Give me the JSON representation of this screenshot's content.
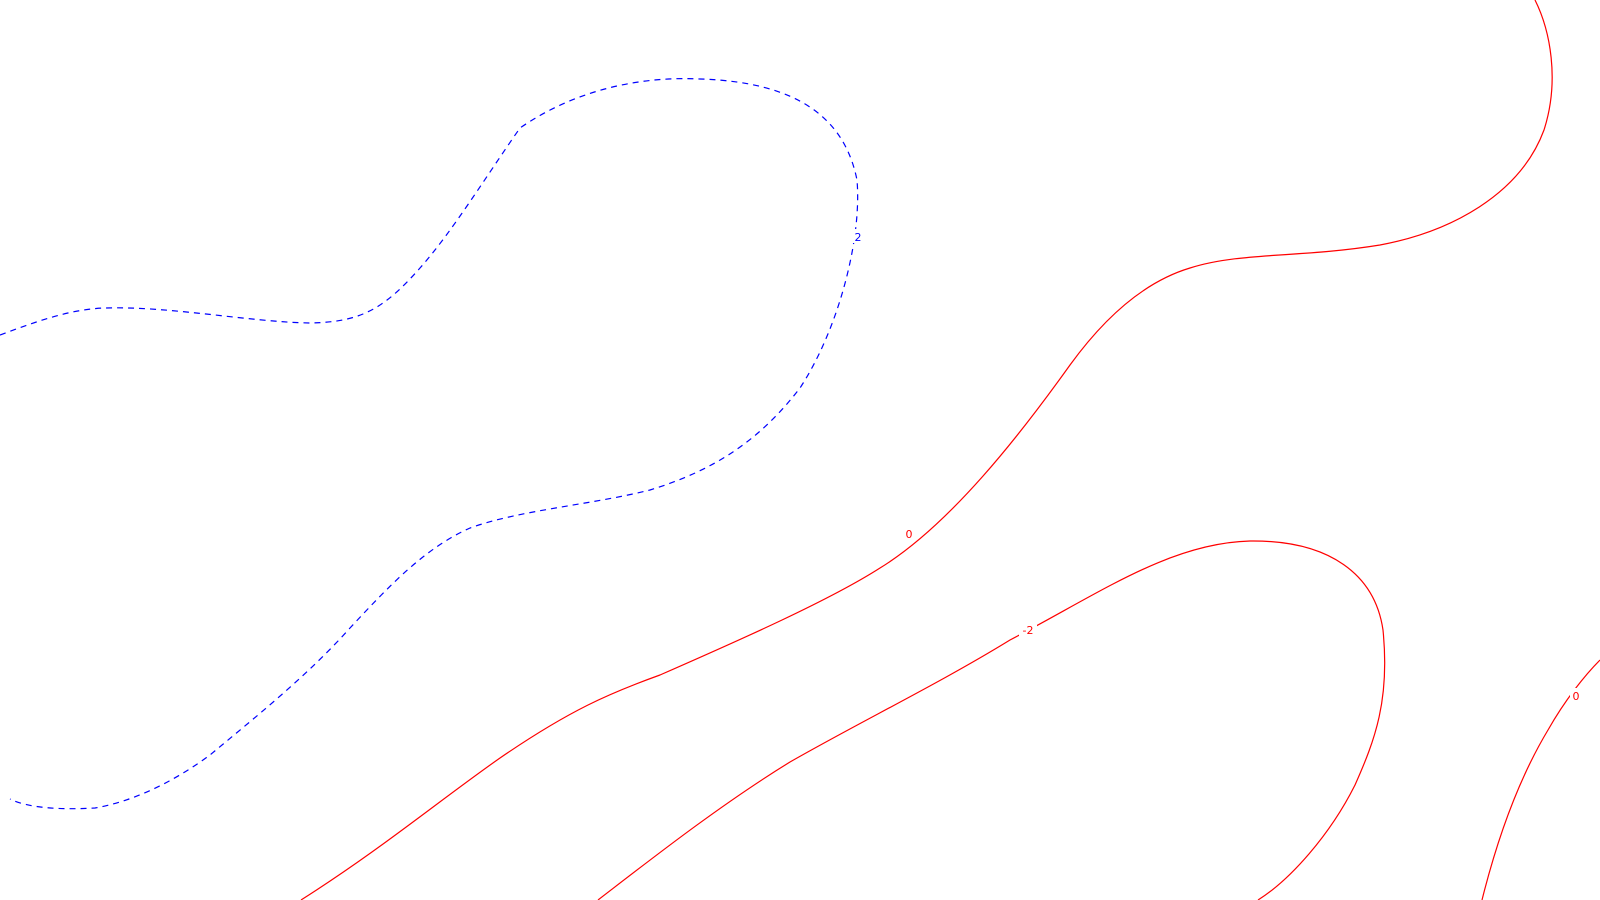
{
  "map": {
    "background_color": "#ffffff",
    "contours": [
      {
        "level": "2",
        "color": "#0000ff",
        "style": "dashed"
      },
      {
        "level": "0",
        "color": "#ff0000",
        "style": "solid"
      },
      {
        "level": "-2",
        "color": "#ff0000",
        "style": "solid"
      },
      {
        "level": "0",
        "color": "#ff0000",
        "style": "solid"
      }
    ],
    "labels": {
      "blue_two": "2",
      "red_zero_center": "0",
      "red_neg_two": "-2",
      "red_zero_right": "0"
    }
  }
}
